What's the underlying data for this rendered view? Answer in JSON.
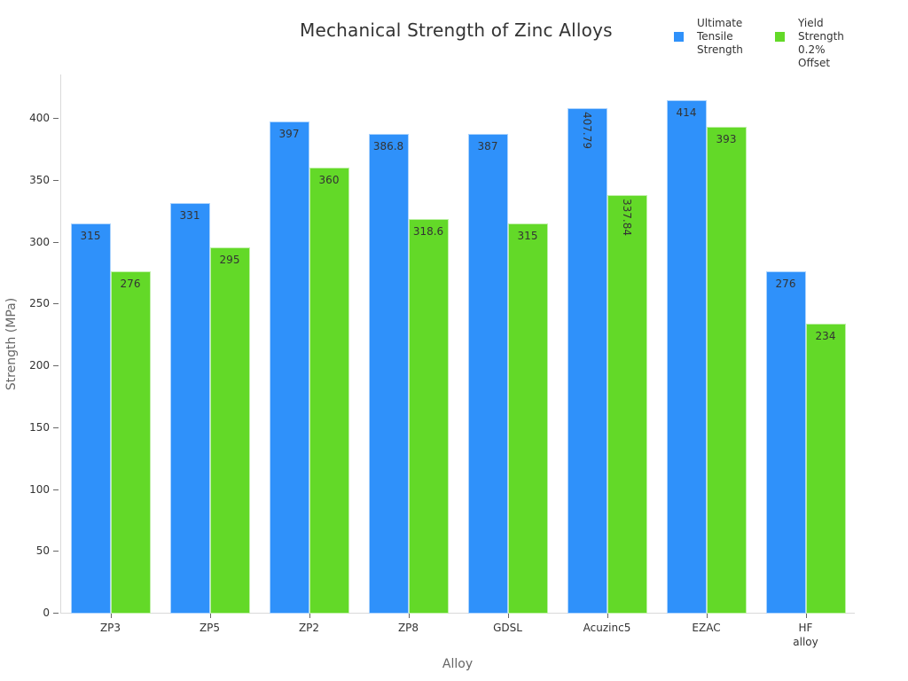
{
  "chart_data": {
    "type": "bar",
    "title": "Mechanical Strength of Zinc Alloys",
    "xlabel": "Alloy",
    "ylabel": "Strength (MPa)",
    "ylim": [
      0,
      435
    ],
    "yticks": [
      0,
      50,
      100,
      150,
      200,
      250,
      300,
      350,
      400
    ],
    "grid": false,
    "legend_position": "top-right",
    "categories": [
      "ZP3",
      "ZP5",
      "ZP2",
      "ZP8",
      "GDSL",
      "Acuzinc5",
      "EZAC",
      "HF\nalloy"
    ],
    "series": [
      {
        "name": "Ultimate Tensile Strength",
        "color": "#2f91fa",
        "values": [
          315,
          331,
          397,
          386.8,
          387,
          407.79,
          414,
          276
        ],
        "labels": [
          "315",
          "331",
          "397",
          "386.8",
          "387",
          "407.79",
          "414",
          "276"
        ]
      },
      {
        "name": "Yield Strength 0.2% Offset",
        "color": "#63d928",
        "values": [
          276,
          295,
          360,
          318.6,
          315,
          337.84,
          393,
          234
        ],
        "labels": [
          "276",
          "295",
          "360",
          "318.6",
          "315",
          "337.84",
          "393",
          "234"
        ]
      }
    ]
  },
  "legend": [
    {
      "label": "Ultimate\nTensile\nStrength",
      "color": "#2f91fa"
    },
    {
      "label": "Yield\nStrength\n0.2% Offset",
      "color": "#63d928"
    }
  ]
}
